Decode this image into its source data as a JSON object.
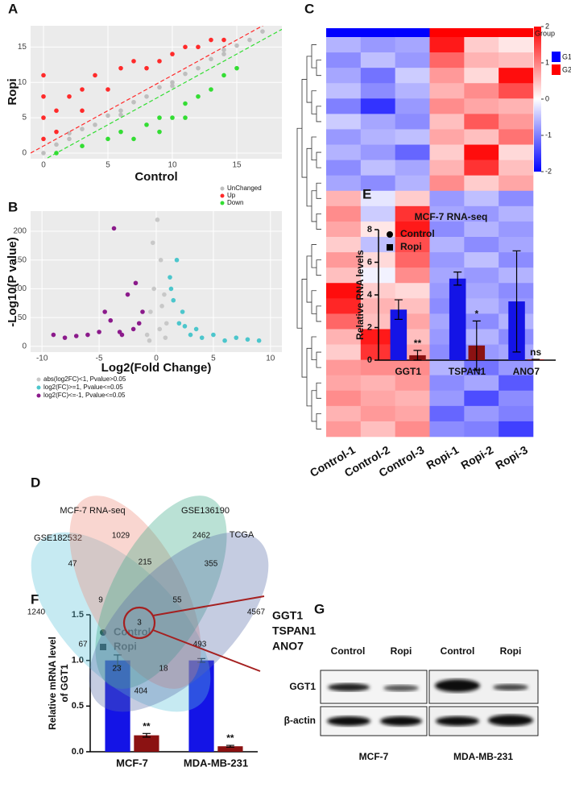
{
  "chart_data": [
    {
      "type": "scatter",
      "panel": "A",
      "x_label": "Control",
      "y_label": "Ropi",
      "xlim": [
        -1,
        18.5
      ],
      "ylim": [
        -0.8,
        18
      ],
      "xticks": [
        0,
        5,
        10,
        15
      ],
      "yticks": [
        0,
        5,
        10,
        15
      ],
      "grid": true,
      "legend": "bottom-right",
      "series": [
        {
          "name": "UnChanged",
          "color": "#bebebe",
          "x": [
            0,
            1,
            2,
            3,
            4,
            5,
            6,
            7,
            8,
            9,
            10,
            11,
            12,
            13,
            14,
            15,
            16,
            17,
            2,
            6,
            10,
            14
          ],
          "y": [
            0,
            1.2,
            2,
            3.4,
            4,
            5.3,
            6,
            7.2,
            8,
            9.3,
            10,
            11.2,
            12,
            13.3,
            14,
            15.2,
            16,
            17.2,
            2.8,
            5.4,
            9.5,
            14.6
          ]
        },
        {
          "name": "Up",
          "color": "#ff2a2a",
          "x": [
            0,
            0,
            0,
            0,
            1,
            2,
            3,
            4,
            5,
            6,
            7,
            8,
            9,
            10,
            11,
            12,
            13,
            14,
            1,
            3
          ],
          "y": [
            2,
            5,
            8,
            11,
            6,
            8,
            9,
            11,
            9,
            12,
            13,
            12,
            13,
            14,
            15,
            15,
            16,
            16,
            3,
            6
          ]
        },
        {
          "name": "Down",
          "color": "#33dd33",
          "x": [
            1,
            3,
            5,
            6,
            7,
            8,
            9,
            10,
            11,
            12,
            13,
            14,
            15,
            9,
            11
          ],
          "y": [
            0,
            1,
            2,
            3,
            2,
            4,
            5,
            5,
            7,
            8,
            9,
            11,
            12,
            3,
            5
          ]
        }
      ]
    },
    {
      "type": "scatter",
      "panel": "B",
      "x_label": "Log2(Fold Change)",
      "y_label": "-Log10(P value)",
      "xlim": [
        -11,
        11
      ],
      "ylim": [
        -10,
        235
      ],
      "xticks": [
        -10,
        -5,
        0,
        5,
        10
      ],
      "yticks": [
        0,
        50,
        100,
        150,
        200
      ],
      "grid": true,
      "legend": "bottom-left",
      "series": [
        {
          "name": "abs(log2FC)<1, Pvalue>0.05",
          "color": "#c8c8c8",
          "x": [
            -0.8,
            -0.5,
            -0.2,
            0.1,
            0.4,
            0.7,
            0.9,
            -0.6,
            0.3,
            0.8,
            -0.3,
            0.5
          ],
          "y": [
            20,
            60,
            100,
            220,
            150,
            90,
            40,
            10,
            30,
            15,
            180,
            70
          ]
        },
        {
          "name": "log2(FC)>=1, Pvalue<=0.05",
          "color": "#4cc6cc",
          "x": [
            1.2,
            1.5,
            2,
            2.3,
            3,
            3.5,
            4,
            5,
            6,
            7,
            8,
            9,
            1.8,
            2.5,
            1.3
          ],
          "y": [
            120,
            80,
            40,
            60,
            20,
            30,
            15,
            20,
            10,
            15,
            12,
            10,
            150,
            35,
            100
          ]
        },
        {
          "name": "log2(FC)<=-1, Pvalue<=0.05",
          "color": "#8b1a8b",
          "x": [
            -1.2,
            -1.5,
            -2,
            -2.5,
            -3,
            -3.7,
            -4,
            -5,
            -6,
            -7,
            -8,
            -9,
            -4.5,
            -1.8,
            -3.2
          ],
          "y": [
            60,
            40,
            30,
            90,
            20,
            205,
            45,
            25,
            20,
            18,
            15,
            20,
            60,
            110,
            25
          ]
        }
      ]
    },
    {
      "type": "heatmap",
      "panel": "C",
      "categories": [
        "Control-1",
        "Control-2",
        "Control-3",
        "Ropi-1",
        "Ropi-2",
        "Ropi-3"
      ],
      "column_groups": [
        "G1",
        "G1",
        "G1",
        "G2",
        "G2",
        "G2"
      ],
      "legend": {
        "title": "Group",
        "items": [
          {
            "name": "G1",
            "color": "#0000ff"
          },
          {
            "name": "G2",
            "color": "#ff0000"
          }
        ]
      },
      "colorbar": {
        "lim": [
          -2,
          2
        ],
        "ticks": [
          2,
          1,
          0,
          -1,
          -2
        ]
      },
      "rows": [
        [
          -0.6,
          -0.8,
          -0.7,
          1.8,
          0.4,
          0.2
        ],
        [
          -0.9,
          -0.5,
          -0.8,
          1.2,
          0.6,
          0.5
        ],
        [
          -0.7,
          -1.1,
          -0.4,
          0.8,
          0.3,
          1.9
        ],
        [
          -0.5,
          -0.9,
          -0.6,
          0.6,
          0.9,
          1.4
        ],
        [
          -1.0,
          -1.6,
          -0.8,
          0.9,
          0.7,
          0.6
        ],
        [
          -0.4,
          -0.7,
          -0.9,
          0.5,
          1.3,
          0.8
        ],
        [
          -0.8,
          -0.6,
          -0.5,
          0.7,
          0.5,
          1.1
        ],
        [
          -0.6,
          -0.8,
          -1.2,
          0.4,
          1.9,
          0.3
        ],
        [
          -0.9,
          -0.5,
          -0.7,
          0.6,
          1.6,
          0.5
        ],
        [
          -0.7,
          -0.9,
          -0.6,
          0.9,
          0.4,
          0.7
        ],
        [
          0.6,
          -0.2,
          0.4,
          -0.8,
          -0.5,
          -0.9
        ],
        [
          0.9,
          -0.4,
          1.6,
          -0.7,
          -0.8,
          -0.6
        ],
        [
          0.7,
          0.2,
          1.8,
          -0.9,
          -0.6,
          -0.8
        ],
        [
          0.4,
          -0.5,
          1.4,
          -0.6,
          -0.9,
          -0.7
        ],
        [
          0.8,
          0.3,
          1.2,
          -0.8,
          -0.5,
          -0.9
        ],
        [
          0.5,
          -0.1,
          0.9,
          -0.7,
          -0.8,
          -0.6
        ],
        [
          1.9,
          0.4,
          0.3,
          -0.8,
          -0.7,
          -0.9
        ],
        [
          1.7,
          0.6,
          0.5,
          -0.9,
          -0.6,
          -0.8
        ],
        [
          1.2,
          0.5,
          0.7,
          -0.7,
          -0.9,
          -0.6
        ],
        [
          0.6,
          1.8,
          0.5,
          -0.8,
          -0.6,
          -0.9
        ],
        [
          0.4,
          1.6,
          0.7,
          -0.9,
          -0.8,
          -0.7
        ],
        [
          0.8,
          0.9,
          0.9,
          -0.6,
          -1.1,
          -0.8
        ],
        [
          0.7,
          0.6,
          0.8,
          -0.9,
          -0.7,
          -1.3
        ],
        [
          0.9,
          0.7,
          0.6,
          -0.8,
          -1.4,
          -0.9
        ],
        [
          0.6,
          0.8,
          0.7,
          -1.2,
          -0.8,
          -1.0
        ],
        [
          0.8,
          0.5,
          0.9,
          -0.9,
          -1.0,
          -1.5
        ]
      ]
    },
    {
      "type": "bar",
      "panel": "E",
      "title": "MCF-7 RNA-seq",
      "y_label": "Relative RNA levels",
      "categories": [
        "GGT1",
        "TSPAN1",
        "ANO7"
      ],
      "ylim": [
        0,
        8
      ],
      "yticks": [
        0,
        2,
        4,
        6,
        8
      ],
      "series": [
        {
          "name": "Control",
          "color": "#1414e6",
          "marker": "circle",
          "values": [
            3.1,
            5.0,
            3.6
          ],
          "errors": [
            0.6,
            0.4,
            3.1
          ]
        },
        {
          "name": "Ropi",
          "color": "#8b1212",
          "marker": "square",
          "values": [
            0.3,
            0.9,
            0.05
          ],
          "errors": [
            0.3,
            1.5,
            0
          ],
          "significance": [
            "**",
            "*",
            "ns"
          ]
        }
      ]
    },
    {
      "type": "bar",
      "panel": "F",
      "y_label": [
        "Relative mRNA level",
        "of GGT1"
      ],
      "categories": [
        "MCF-7",
        "MDA-MB-231"
      ],
      "ylim": [
        0,
        1.5
      ],
      "yticks": [
        {
          "value": 0,
          "label": "0.0"
        },
        {
          "value": 0.5,
          "label": "0.5"
        },
        {
          "value": 1,
          "label": "1.0"
        },
        {
          "value": 1.5,
          "label": "1.5"
        }
      ],
      "series": [
        {
          "name": "Control",
          "color": "#1414e6",
          "marker": "circle",
          "values": [
            1.0,
            1.0
          ],
          "errors": [
            0.06,
            0.02
          ]
        },
        {
          "name": "Ropi",
          "color": "#8b1212",
          "marker": "square",
          "values": [
            0.18,
            0.06
          ],
          "errors": [
            0.02,
            0.01
          ],
          "significance": [
            "**",
            "**"
          ]
        }
      ]
    }
  ],
  "venn": {
    "panel": "D",
    "sets": [
      {
        "label": "GSE182532",
        "color": "#5cc4da"
      },
      {
        "label": "MCF-7 RNA-seq",
        "color": "#ee8a78"
      },
      {
        "label": "GSE136190",
        "color": "#3aa888"
      },
      {
        "label": "TCGA",
        "color": "#5a6ca8"
      }
    ],
    "regions": [
      1029,
      2462,
      47,
      215,
      355,
      1240,
      9,
      55,
      4567,
      3,
      67,
      23,
      18,
      493,
      404
    ],
    "genes": [
      "GGT1",
      "TSPAN1",
      "ANO7"
    ]
  },
  "blot": {
    "panel": "G",
    "lanes": [
      "Control",
      "Ropi",
      "Control",
      "Ropi"
    ],
    "rows": [
      "GGT1",
      "β-actin"
    ],
    "cell_lines": [
      "MCF-7",
      "MDA-MB-231"
    ]
  }
}
